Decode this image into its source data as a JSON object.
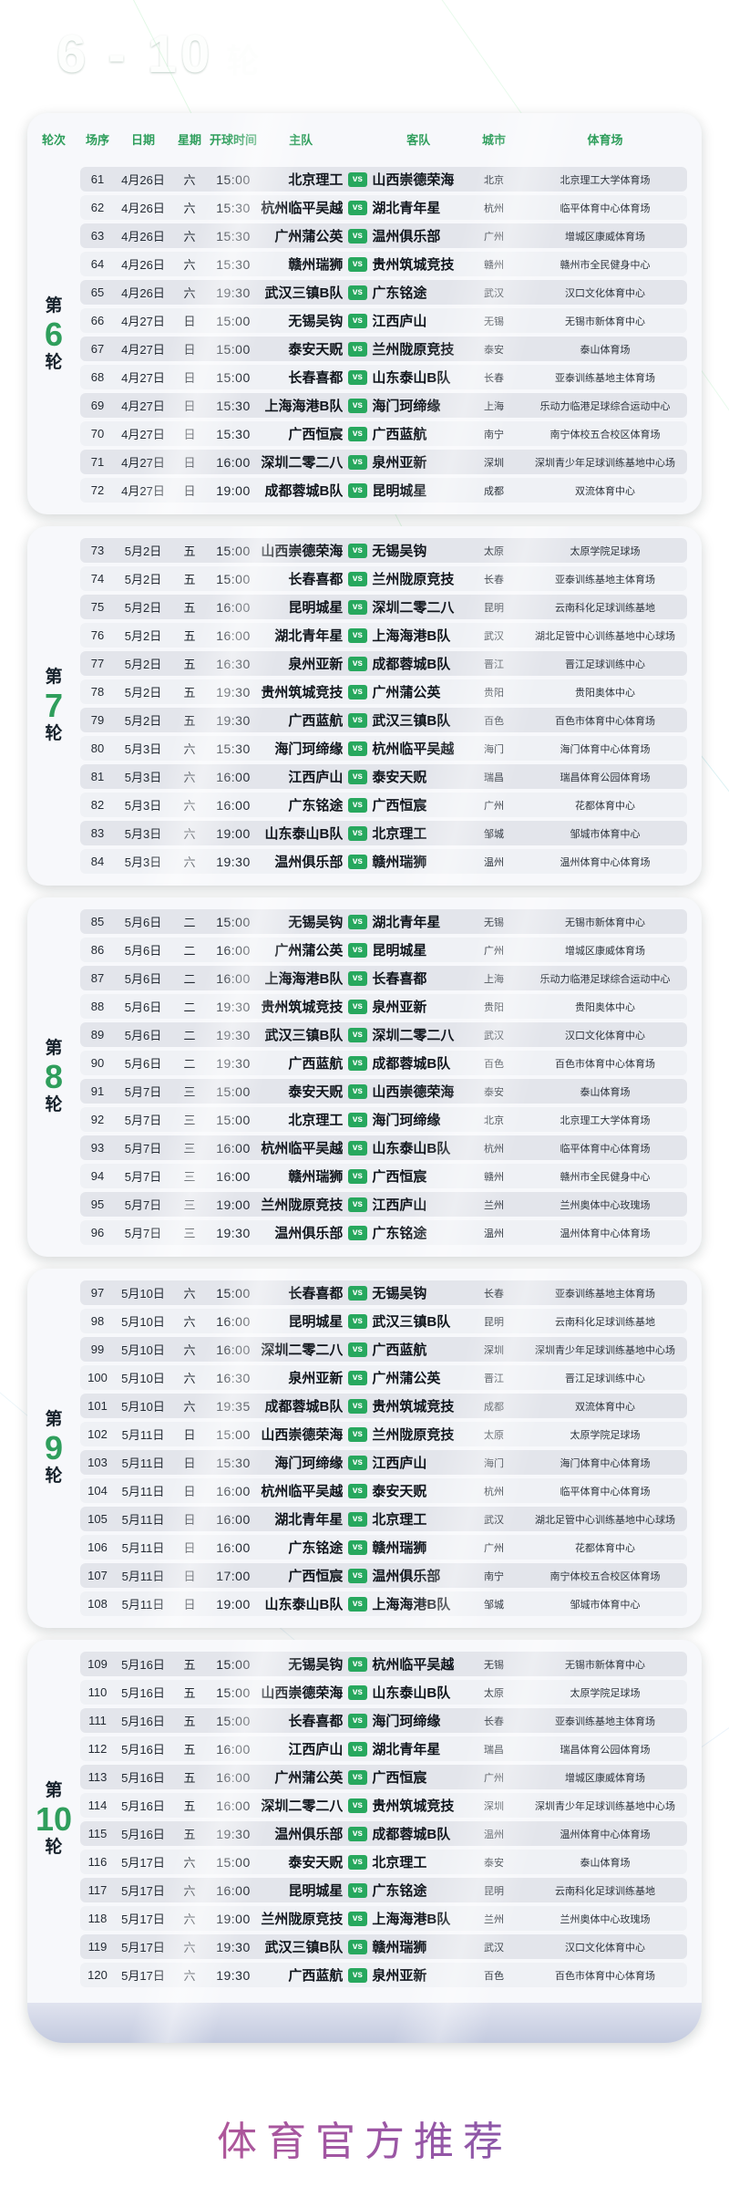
{
  "title_range": "6 - 10",
  "title_suffix": "轮",
  "vs_label": "vs",
  "watermark": "体育官方推荐",
  "columns": [
    "轮次",
    "场序",
    "日期",
    "星期",
    "开球时间",
    "主队",
    "客队",
    "城市",
    "体育场"
  ],
  "colors": {
    "accent_green": "#2f9e5c",
    "badge_green": "#27a85e",
    "background_green": "#55ab77",
    "background_navy": "#232c5a",
    "card_background": "#f7f8fb",
    "row_stripe": "#e3e5eb",
    "watermark_gradient": [
      "#b92f6d",
      "#8c2d8b",
      "#4b2f9e"
    ]
  },
  "rounds": [
    {
      "prefix": "第",
      "number": "6",
      "suffix": "轮",
      "matches": [
        [
          "61",
          "4月26日",
          "六",
          "15:00",
          "北京理工",
          "山西崇德荣海",
          "北京",
          "北京理工大学体育场"
        ],
        [
          "62",
          "4月26日",
          "六",
          "15:30",
          "杭州临平吴越",
          "湖北青年星",
          "杭州",
          "临平体育中心体育场"
        ],
        [
          "63",
          "4月26日",
          "六",
          "15:30",
          "广州蒲公英",
          "温州俱乐部",
          "广州",
          "增城区康威体育场"
        ],
        [
          "64",
          "4月26日",
          "六",
          "15:30",
          "赣州瑞狮",
          "贵州筑城竞技",
          "赣州",
          "赣州市全民健身中心"
        ],
        [
          "65",
          "4月26日",
          "六",
          "19:30",
          "武汉三镇B队",
          "广东铭途",
          "武汉",
          "汉口文化体育中心"
        ],
        [
          "66",
          "4月27日",
          "日",
          "15:00",
          "无锡吴钩",
          "江西庐山",
          "无锡",
          "无锡市新体育中心"
        ],
        [
          "67",
          "4月27日",
          "日",
          "15:00",
          "泰安天贶",
          "兰州陇原竞技",
          "泰安",
          "泰山体育场"
        ],
        [
          "68",
          "4月27日",
          "日",
          "15:00",
          "长春喜都",
          "山东泰山B队",
          "长春",
          "亚泰训练基地主体育场"
        ],
        [
          "69",
          "4月27日",
          "日",
          "15:30",
          "上海海港B队",
          "海门珂缔缘",
          "上海",
          "乐动力临港足球综合运动中心"
        ],
        [
          "70",
          "4月27日",
          "日",
          "15:30",
          "广西恒宸",
          "广西蓝航",
          "南宁",
          "南宁体校五合校区体育场"
        ],
        [
          "71",
          "4月27日",
          "日",
          "16:00",
          "深圳二零二八",
          "泉州亚新",
          "深圳",
          "深圳青少年足球训练基地中心场"
        ],
        [
          "72",
          "4月27日",
          "日",
          "19:00",
          "成都蓉城B队",
          "昆明城星",
          "成都",
          "双流体育中心"
        ]
      ]
    },
    {
      "prefix": "第",
      "number": "7",
      "suffix": "轮",
      "matches": [
        [
          "73",
          "5月2日",
          "五",
          "15:00",
          "山西崇德荣海",
          "无锡吴钩",
          "太原",
          "太原学院足球场"
        ],
        [
          "74",
          "5月2日",
          "五",
          "15:00",
          "长春喜都",
          "兰州陇原竞技",
          "长春",
          "亚泰训练基地主体育场"
        ],
        [
          "75",
          "5月2日",
          "五",
          "16:00",
          "昆明城星",
          "深圳二零二八",
          "昆明",
          "云南科化足球训练基地"
        ],
        [
          "76",
          "5月2日",
          "五",
          "16:00",
          "湖北青年星",
          "上海海港B队",
          "武汉",
          "湖北足管中心训练基地中心球场"
        ],
        [
          "77",
          "5月2日",
          "五",
          "16:30",
          "泉州亚新",
          "成都蓉城B队",
          "晋江",
          "晋江足球训练中心"
        ],
        [
          "78",
          "5月2日",
          "五",
          "19:30",
          "贵州筑城竞技",
          "广州蒲公英",
          "贵阳",
          "贵阳奥体中心"
        ],
        [
          "79",
          "5月2日",
          "五",
          "19:30",
          "广西蓝航",
          "武汉三镇B队",
          "百色",
          "百色市体育中心体育场"
        ],
        [
          "80",
          "5月3日",
          "六",
          "15:30",
          "海门珂缔缘",
          "杭州临平吴越",
          "海门",
          "海门体育中心体育场"
        ],
        [
          "81",
          "5月3日",
          "六",
          "16:00",
          "江西庐山",
          "泰安天贶",
          "瑞昌",
          "瑞昌体育公园体育场"
        ],
        [
          "82",
          "5月3日",
          "六",
          "16:00",
          "广东铭途",
          "广西恒宸",
          "广州",
          "花都体育中心"
        ],
        [
          "83",
          "5月3日",
          "六",
          "19:00",
          "山东泰山B队",
          "北京理工",
          "邹城",
          "邹城市体育中心"
        ],
        [
          "84",
          "5月3日",
          "六",
          "19:30",
          "温州俱乐部",
          "赣州瑞狮",
          "温州",
          "温州体育中心体育场"
        ]
      ]
    },
    {
      "prefix": "第",
      "number": "8",
      "suffix": "轮",
      "matches": [
        [
          "85",
          "5月6日",
          "二",
          "15:00",
          "无锡吴钩",
          "湖北青年星",
          "无锡",
          "无锡市新体育中心"
        ],
        [
          "86",
          "5月6日",
          "二",
          "16:00",
          "广州蒲公英",
          "昆明城星",
          "广州",
          "增城区康威体育场"
        ],
        [
          "87",
          "5月6日",
          "二",
          "16:00",
          "上海海港B队",
          "长春喜都",
          "上海",
          "乐动力临港足球综合运动中心"
        ],
        [
          "88",
          "5月6日",
          "二",
          "19:30",
          "贵州筑城竞技",
          "泉州亚新",
          "贵阳",
          "贵阳奥体中心"
        ],
        [
          "89",
          "5月6日",
          "二",
          "19:30",
          "武汉三镇B队",
          "深圳二零二八",
          "武汉",
          "汉口文化体育中心"
        ],
        [
          "90",
          "5月6日",
          "二",
          "19:30",
          "广西蓝航",
          "成都蓉城B队",
          "百色",
          "百色市体育中心体育场"
        ],
        [
          "91",
          "5月7日",
          "三",
          "15:00",
          "泰安天贶",
          "山西崇德荣海",
          "泰安",
          "泰山体育场"
        ],
        [
          "92",
          "5月7日",
          "三",
          "15:00",
          "北京理工",
          "海门珂缔缘",
          "北京",
          "北京理工大学体育场"
        ],
        [
          "93",
          "5月7日",
          "三",
          "16:00",
          "杭州临平吴越",
          "山东泰山B队",
          "杭州",
          "临平体育中心体育场"
        ],
        [
          "94",
          "5月7日",
          "三",
          "16:00",
          "赣州瑞狮",
          "广西恒宸",
          "赣州",
          "赣州市全民健身中心"
        ],
        [
          "95",
          "5月7日",
          "三",
          "19:00",
          "兰州陇原竞技",
          "江西庐山",
          "兰州",
          "兰州奥体中心玫瑰场"
        ],
        [
          "96",
          "5月7日",
          "三",
          "19:30",
          "温州俱乐部",
          "广东铭途",
          "温州",
          "温州体育中心体育场"
        ]
      ]
    },
    {
      "prefix": "第",
      "number": "9",
      "suffix": "轮",
      "matches": [
        [
          "97",
          "5月10日",
          "六",
          "15:00",
          "长春喜都",
          "无锡吴钩",
          "长春",
          "亚泰训练基地主体育场"
        ],
        [
          "98",
          "5月10日",
          "六",
          "16:00",
          "昆明城星",
          "武汉三镇B队",
          "昆明",
          "云南科化足球训练基地"
        ],
        [
          "99",
          "5月10日",
          "六",
          "16:00",
          "深圳二零二八",
          "广西蓝航",
          "深圳",
          "深圳青少年足球训练基地中心场"
        ],
        [
          "100",
          "5月10日",
          "六",
          "16:30",
          "泉州亚新",
          "广州蒲公英",
          "晋江",
          "晋江足球训练中心"
        ],
        [
          "101",
          "5月10日",
          "六",
          "19:35",
          "成都蓉城B队",
          "贵州筑城竞技",
          "成都",
          "双流体育中心"
        ],
        [
          "102",
          "5月11日",
          "日",
          "15:00",
          "山西崇德荣海",
          "兰州陇原竞技",
          "太原",
          "太原学院足球场"
        ],
        [
          "103",
          "5月11日",
          "日",
          "15:30",
          "海门珂缔缘",
          "江西庐山",
          "海门",
          "海门体育中心体育场"
        ],
        [
          "104",
          "5月11日",
          "日",
          "16:00",
          "杭州临平吴越",
          "泰安天贶",
          "杭州",
          "临平体育中心体育场"
        ],
        [
          "105",
          "5月11日",
          "日",
          "16:00",
          "湖北青年星",
          "北京理工",
          "武汉",
          "湖北足管中心训练基地中心球场"
        ],
        [
          "106",
          "5月11日",
          "日",
          "16:00",
          "广东铭途",
          "赣州瑞狮",
          "广州",
          "花都体育中心"
        ],
        [
          "107",
          "5月11日",
          "日",
          "17:00",
          "广西恒宸",
          "温州俱乐部",
          "南宁",
          "南宁体校五合校区体育场"
        ],
        [
          "108",
          "5月11日",
          "日",
          "19:00",
          "山东泰山B队",
          "上海海港B队",
          "邹城",
          "邹城市体育中心"
        ]
      ]
    },
    {
      "prefix": "第",
      "number": "10",
      "suffix": "轮",
      "matches": [
        [
          "109",
          "5月16日",
          "五",
          "15:00",
          "无锡吴钩",
          "杭州临平吴越",
          "无锡",
          "无锡市新体育中心"
        ],
        [
          "110",
          "5月16日",
          "五",
          "15:00",
          "山西崇德荣海",
          "山东泰山B队",
          "太原",
          "太原学院足球场"
        ],
        [
          "111",
          "5月16日",
          "五",
          "15:00",
          "长春喜都",
          "海门珂缔缘",
          "长春",
          "亚泰训练基地主体育场"
        ],
        [
          "112",
          "5月16日",
          "五",
          "16:00",
          "江西庐山",
          "湖北青年星",
          "瑞昌",
          "瑞昌体育公园体育场"
        ],
        [
          "113",
          "5月16日",
          "五",
          "16:00",
          "广州蒲公英",
          "广西恒宸",
          "广州",
          "增城区康威体育场"
        ],
        [
          "114",
          "5月16日",
          "五",
          "16:00",
          "深圳二零二八",
          "贵州筑城竞技",
          "深圳",
          "深圳青少年足球训练基地中心场"
        ],
        [
          "115",
          "5月16日",
          "五",
          "19:30",
          "温州俱乐部",
          "成都蓉城B队",
          "温州",
          "温州体育中心体育场"
        ],
        [
          "116",
          "5月17日",
          "六",
          "15:00",
          "泰安天贶",
          "北京理工",
          "泰安",
          "泰山体育场"
        ],
        [
          "117",
          "5月17日",
          "六",
          "16:00",
          "昆明城星",
          "广东铭途",
          "昆明",
          "云南科化足球训练基地"
        ],
        [
          "118",
          "5月17日",
          "六",
          "19:00",
          "兰州陇原竞技",
          "上海海港B队",
          "兰州",
          "兰州奥体中心玫瑰场"
        ],
        [
          "119",
          "5月17日",
          "六",
          "19:30",
          "武汉三镇B队",
          "赣州瑞狮",
          "武汉",
          "汉口文化体育中心"
        ],
        [
          "120",
          "5月17日",
          "六",
          "19:30",
          "广西蓝航",
          "泉州亚新",
          "百色",
          "百色市体育中心体育场"
        ]
      ]
    }
  ]
}
